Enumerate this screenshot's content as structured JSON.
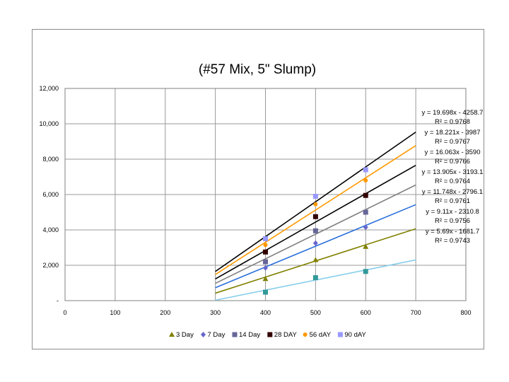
{
  "chart_data": {
    "type": "scatter",
    "title": "(#57 Mix, 5\" Slump)",
    "xlabel": "",
    "ylabel": "",
    "xlim": [
      0,
      800
    ],
    "ylim": [
      0,
      12000
    ],
    "x_ticks": [
      "0",
      "100",
      "200",
      "300",
      "400",
      "500",
      "600",
      "700",
      "800"
    ],
    "y_ticks": [
      "-",
      "2,000",
      "4,000",
      "6,000",
      "8,000",
      "10,000",
      "12,000"
    ],
    "grid": true,
    "legend_position": "bottom",
    "trendline_x_range": [
      300,
      700
    ],
    "series": [
      {
        "name": "3 Day",
        "marker": "triangle",
        "color": "#808000",
        "x": [
          400,
          500,
          600
        ],
        "y": [
          1230,
          2300,
          3050
        ],
        "trendline": {
          "slope": 9.11,
          "intercept": -2310.8,
          "color": "#808000",
          "equation": "y = 9.11x - 2310.8",
          "r2": "R² = 0.9756"
        }
      },
      {
        "name": "7 Day",
        "marker": "diamond",
        "color": "#6666cc",
        "x": [
          400,
          500,
          600
        ],
        "y": [
          1850,
          3250,
          4150
        ],
        "trendline": {
          "slope": 11.748,
          "intercept": -2796.1,
          "color": "#2a6fdb",
          "equation": "y = 11.748x - 2796.1",
          "r2": "R² = 0.9761"
        }
      },
      {
        "name": "14 Day",
        "marker": "square",
        "color": "#666699",
        "x": [
          400,
          500,
          600
        ],
        "y": [
          2200,
          3950,
          5000
        ],
        "trendline": {
          "slope": 13.905,
          "intercept": -3193.1,
          "color": "#808080",
          "equation": "y = 13.905x - 3193.1",
          "r2": "R² = 0.9764"
        }
      },
      {
        "name": "28 DAY",
        "marker": "square",
        "color": "#330000",
        "x": [
          400,
          500,
          600
        ],
        "y": [
          2750,
          4750,
          5950
        ],
        "trendline": {
          "slope": 16.063,
          "intercept": -3590,
          "color": "#000000",
          "equation": "y = 16.063x - 3590",
          "r2": "R² = 0.9766"
        }
      },
      {
        "name": "56 dAY",
        "marker": "circle",
        "color": "#ff9900",
        "x": [
          400,
          500,
          600
        ],
        "y": [
          3150,
          5450,
          6800
        ],
        "trendline": {
          "slope": 18.221,
          "intercept": -3987,
          "color": "#ff9900",
          "equation": "y = 18.221x - 3987",
          "r2": "R² = 0.9767"
        }
      },
      {
        "name": "90 dAY",
        "marker": "square",
        "color": "#9999ff",
        "x": [
          400,
          500,
          600
        ],
        "y": [
          3500,
          5900,
          7400
        ],
        "trendline": {
          "slope": 19.698,
          "intercept": -4258.7,
          "color": "#000000",
          "equation": "y = 19.698x - 4258.7",
          "r2": "R² = 0.9768"
        }
      },
      {
        "name": "",
        "marker": "square",
        "color": "#339999",
        "x": [
          400,
          500,
          600
        ],
        "y": [
          480,
          1300,
          1650
        ],
        "trendline": {
          "slope": 5.69,
          "intercept": -1681.7,
          "color": "#87ceeb",
          "equation": "y = 5.69x - 1681.7",
          "r2": "R² = 0.9743"
        }
      }
    ]
  }
}
